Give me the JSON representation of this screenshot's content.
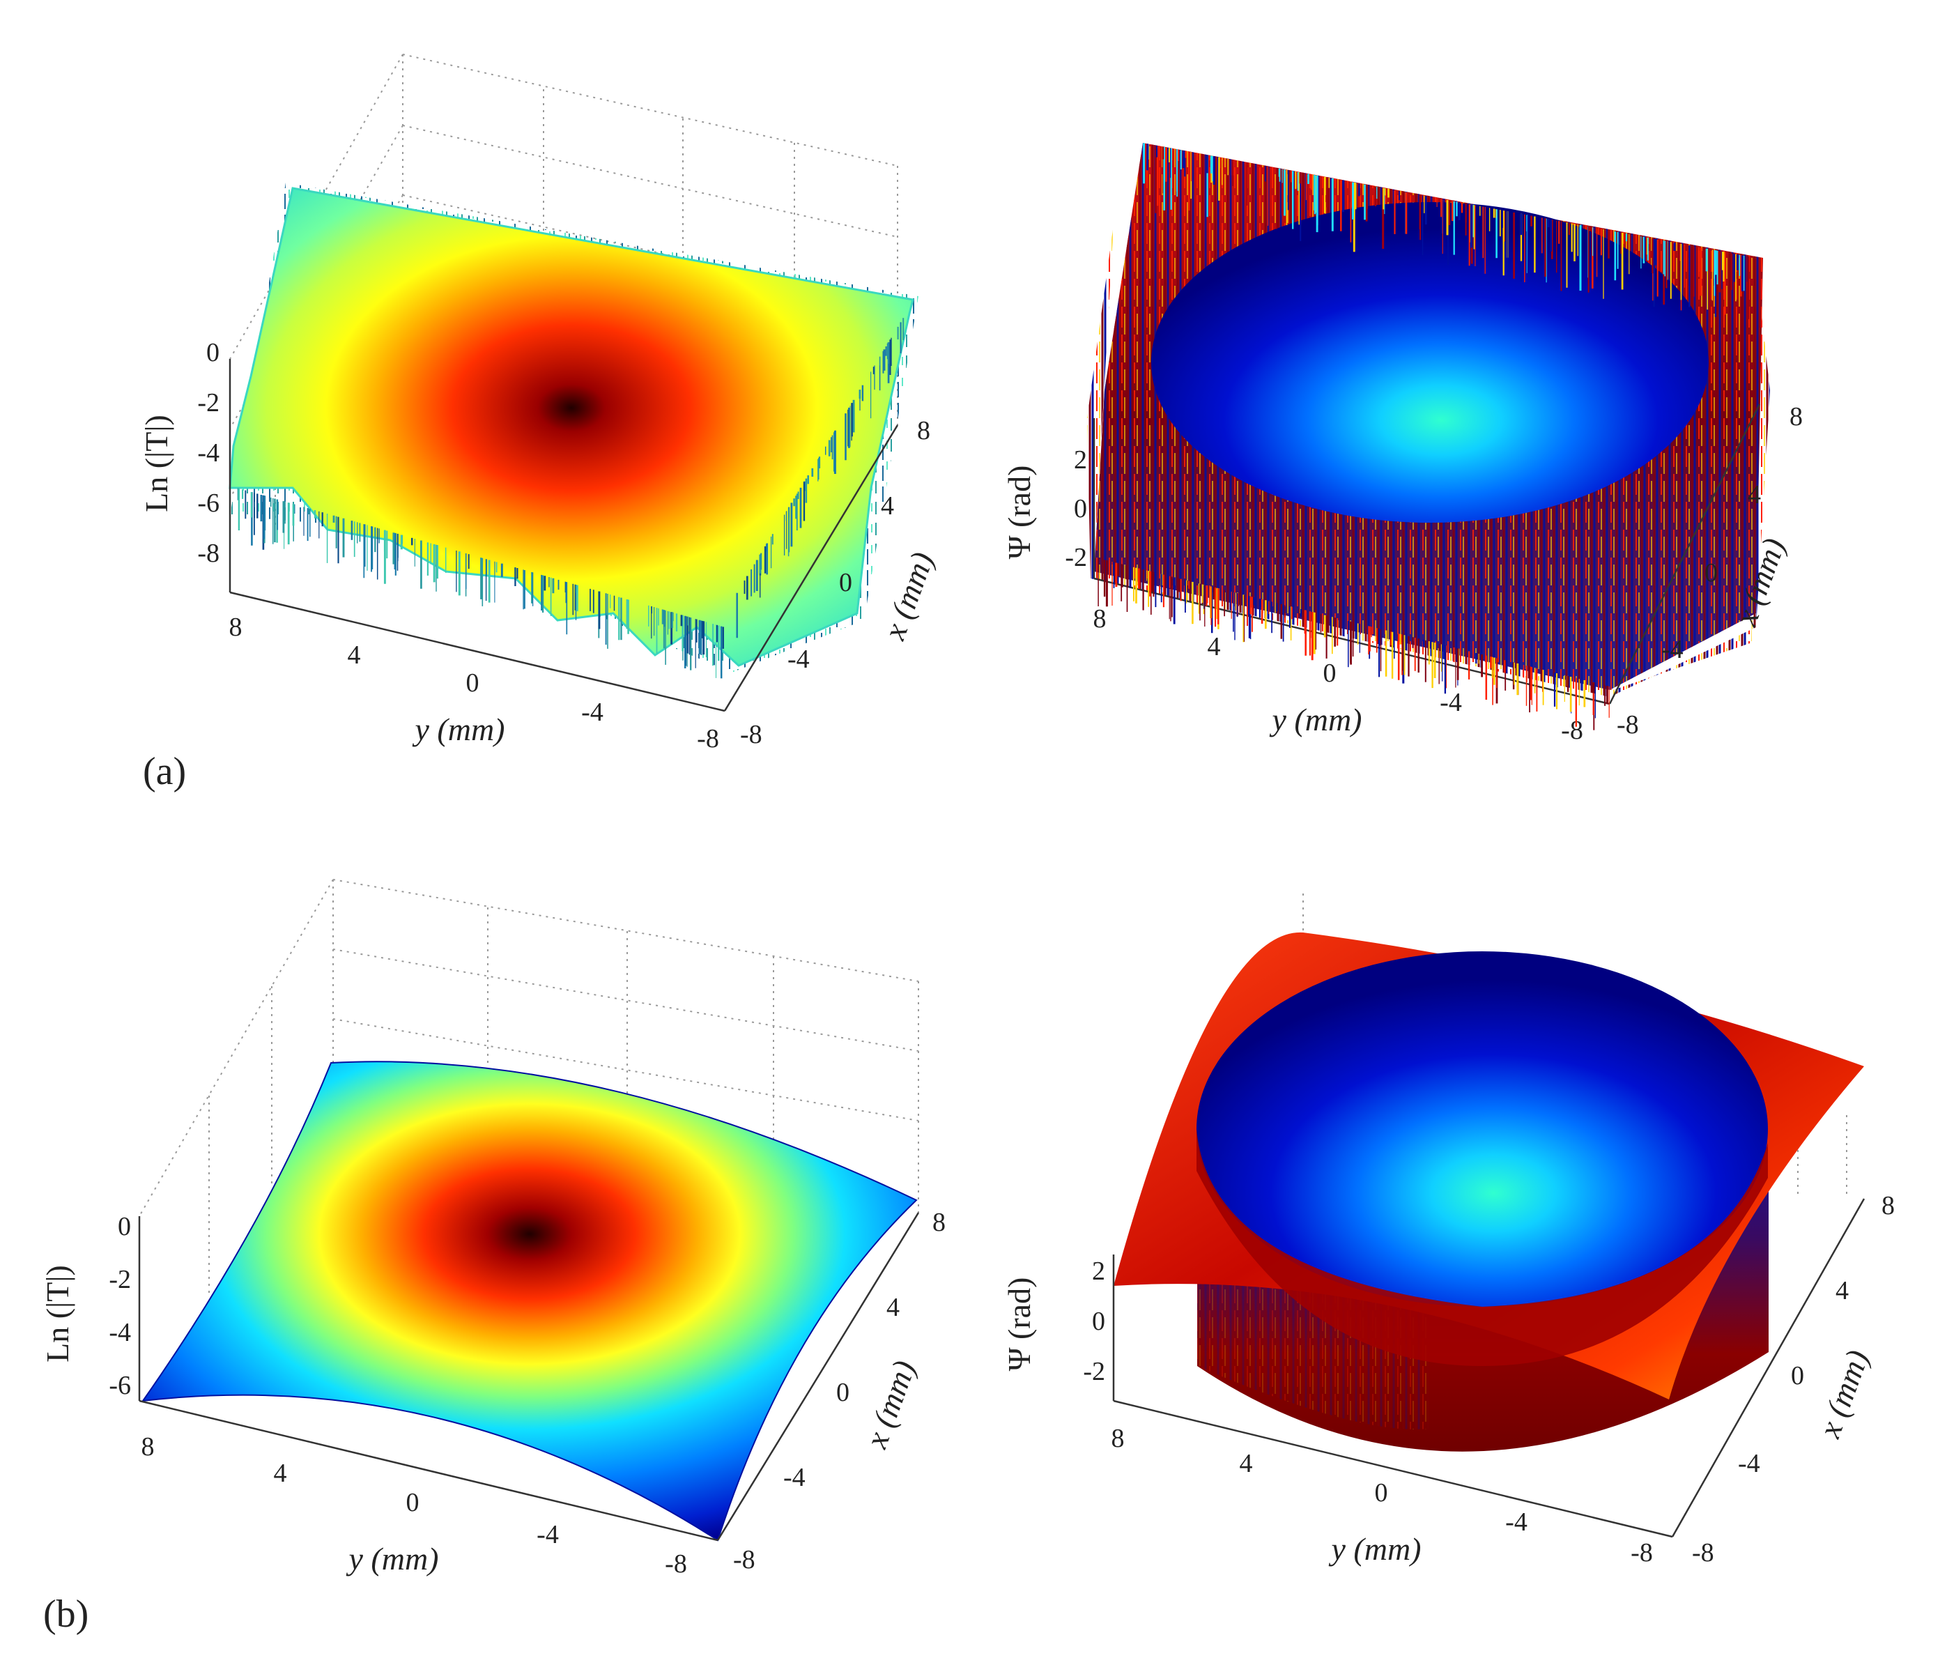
{
  "panel_labels": [
    "(a)",
    "(b)"
  ],
  "colormap": "jet",
  "chart_data": [
    {
      "type": "surface3d",
      "panel": "(a)",
      "quantity": "magnitude",
      "zlabel": "Ln (|T|)",
      "xlabel": "x (mm)",
      "ylabel": "y (mm)",
      "x_ticks": [
        "8",
        "4",
        "0",
        "-4",
        "-8"
      ],
      "y_ticks": [
        "8",
        "4",
        "0",
        "-4",
        "-8"
      ],
      "z_ticks": [
        "0",
        "-2",
        "-4",
        "-6",
        "-8"
      ],
      "xlim": [
        -8,
        8
      ],
      "ylim": [
        -8,
        8
      ],
      "zlim": [
        -9,
        1
      ],
      "peak_value": 0,
      "edge_value": -6,
      "noisy": true,
      "grid": true
    },
    {
      "type": "surface3d",
      "panel": "(a)",
      "quantity": "phase",
      "zlabel": "Ψ (rad)",
      "xlabel": "x (mm)",
      "ylabel": "y (mm)",
      "x_ticks": [
        "8",
        "4",
        "0",
        "-4",
        "-8"
      ],
      "y_ticks": [
        "8",
        "4",
        "0",
        "-4",
        "-8"
      ],
      "z_ticks": [
        "2",
        "0",
        "-2"
      ],
      "xlim": [
        -8,
        8
      ],
      "ylim": [
        -8,
        8
      ],
      "zlim": [
        -3,
        3
      ],
      "aperture_radius_mm": 6,
      "noisy": true,
      "grid": true
    },
    {
      "type": "surface3d",
      "panel": "(b)",
      "quantity": "magnitude",
      "zlabel": "Ln (|T|)",
      "xlabel": "x (mm)",
      "ylabel": "y (mm)",
      "x_ticks": [
        "8",
        "4",
        "0",
        "-4",
        "-8"
      ],
      "y_ticks": [
        "8",
        "4",
        "0",
        "-4",
        "-8"
      ],
      "z_ticks": [
        "0",
        "-2",
        "-4",
        "-6"
      ],
      "xlim": [
        -8,
        8
      ],
      "ylim": [
        -8,
        8
      ],
      "zlim": [
        -7,
        1
      ],
      "peak_value": 0,
      "edge_value": -6.5,
      "noisy": false,
      "grid": true
    },
    {
      "type": "surface3d",
      "panel": "(b)",
      "quantity": "phase",
      "zlabel": "Ψ (rad)",
      "xlabel": "x (mm)",
      "ylabel": "y (mm)",
      "x_ticks": [
        "8",
        "4",
        "0",
        "-4",
        "-8"
      ],
      "y_ticks": [
        "8",
        "4",
        "0",
        "-4",
        "-8"
      ],
      "z_ticks": [
        "2",
        "0",
        "-2"
      ],
      "xlim": [
        -8,
        8
      ],
      "ylim": [
        -8,
        8
      ],
      "zlim": [
        -3,
        3
      ],
      "aperture_radius_mm": 6,
      "noisy": false,
      "grid": true
    }
  ]
}
